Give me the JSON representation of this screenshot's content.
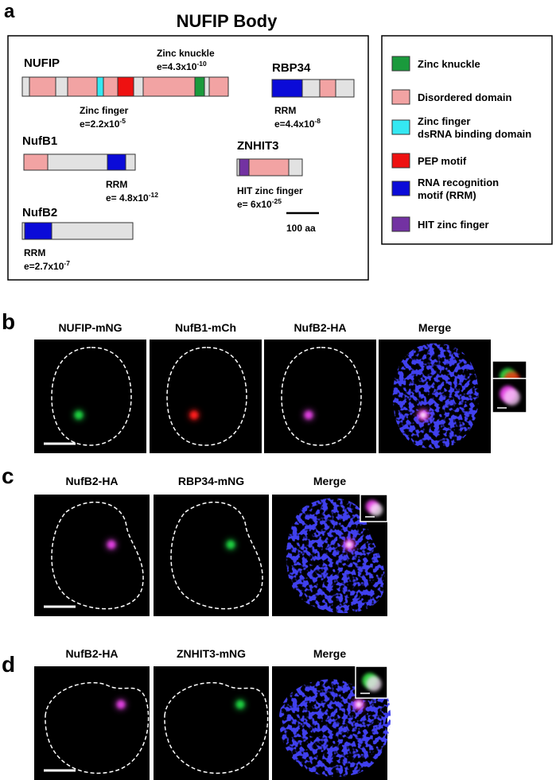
{
  "panel_a": {
    "letter": "a",
    "title": "NUFIP Body",
    "proteins": [
      {
        "name": "NUFIP",
        "notes": [
          {
            "lines": [
              {
                "text": "Zinc knuckle"
              },
              {
                "text": "e=4.3x10",
                "sup": "-10"
              }
            ]
          },
          {
            "lines": [
              {
                "text": "Zinc finger"
              },
              {
                "text": "e=2.2x10",
                "sup": "-5"
              }
            ]
          }
        ]
      },
      {
        "name": "NufB1",
        "notes": [
          {
            "lines": [
              {
                "text": "RRM"
              },
              {
                "text": "e= 4.8x10",
                "sup": "-12"
              }
            ]
          }
        ]
      },
      {
        "name": "NufB2",
        "notes": [
          {
            "lines": [
              {
                "text": "RRM"
              },
              {
                "text": "e=2.7x10",
                "sup": "-7"
              }
            ]
          }
        ]
      },
      {
        "name": "RBP34",
        "notes": [
          {
            "lines": [
              {
                "text": "RRM"
              },
              {
                "text": "e=4.4x10",
                "sup": "-8"
              }
            ]
          }
        ]
      },
      {
        "name": "ZNHIT3",
        "notes": [
          {
            "lines": [
              {
                "text": "HIT zinc finger"
              },
              {
                "text": "e= 6x10",
                "sup": "-25"
              }
            ]
          }
        ]
      }
    ],
    "scale_bar": "100 aa",
    "legend": [
      {
        "lines": [
          "Zinc knuckle"
        ]
      },
      {
        "lines": [
          "Disordered domain"
        ]
      },
      {
        "lines": [
          "Zinc finger",
          "dsRNA binding domain"
        ]
      },
      {
        "lines": [
          "PEP motif"
        ]
      },
      {
        "lines": [
          "RNA recognition",
          "motif (RRM)"
        ]
      },
      {
        "lines": [
          "HIT zinc finger"
        ]
      }
    ]
  },
  "panel_b": {
    "letter": "b",
    "channels": [
      "NUFIP-mNG",
      "NufB1-mCh",
      "NufB2-HA",
      "Merge"
    ]
  },
  "panel_c": {
    "letter": "c",
    "channels": [
      "NufB2-HA",
      "RBP34-mNG",
      "Merge"
    ]
  },
  "panel_d": {
    "letter": "d",
    "channels": [
      "NufB2-HA",
      "ZNHIT3-mNG",
      "Merge"
    ]
  }
}
